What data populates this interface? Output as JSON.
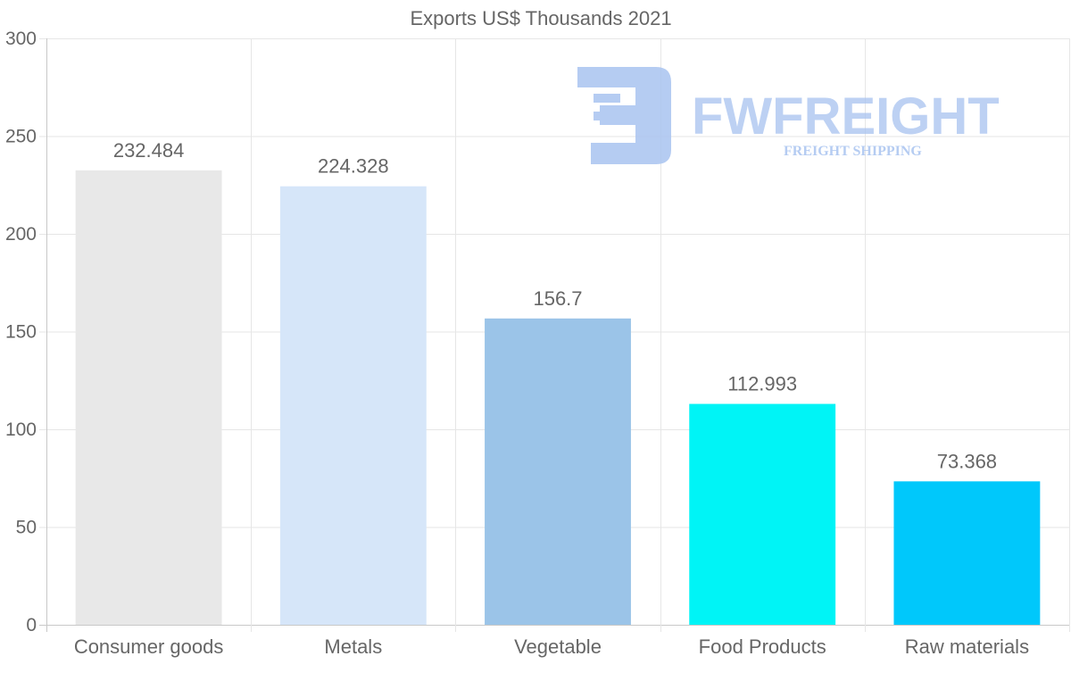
{
  "chart_data": {
    "type": "bar",
    "title": "Exports US$ Thousands 2021",
    "xlabel": "",
    "ylabel": "",
    "categories": [
      "Consumer goods",
      "Metals",
      "Vegetable",
      "Food Products",
      "Raw materials"
    ],
    "values": [
      232.484,
      224.328,
      156.7,
      112.993,
      73.368
    ],
    "value_labels": [
      "232.484",
      "224.328",
      "156.7",
      "112.993",
      "73.368"
    ],
    "colors": [
      "#e8e8e8",
      "#d6e6f9",
      "#9bc4e8",
      "#00f4f6",
      "#00c8fb"
    ],
    "ylim": [
      0,
      300
    ],
    "yticks": [
      0,
      50,
      100,
      150,
      200,
      250,
      300
    ],
    "grid": true,
    "legend": "none"
  },
  "watermark": {
    "brand": "FWFREIGHT",
    "tagline": "FREIGHT SHIPPING",
    "color": "#a9c4f0"
  }
}
